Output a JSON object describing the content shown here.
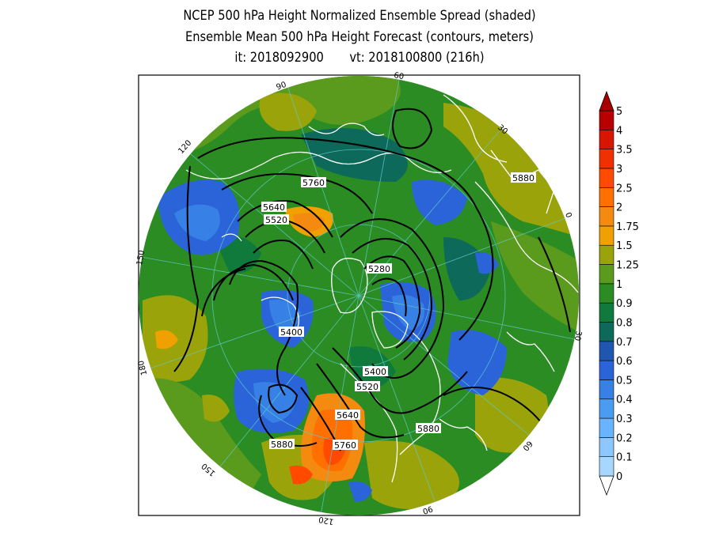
{
  "title": {
    "line1": "NCEP 500 hPa Height Normalized Ensemble Spread (shaded)",
    "line2": "Ensemble Mean 500 hPa Height Forecast (contours, meters)",
    "line3": "it: 2018092900       vt: 2018100800 (216h)"
  },
  "colorbar": {
    "levels": [
      "0",
      "0.1",
      "0.2",
      "0.3",
      "0.4",
      "0.5",
      "0.6",
      "0.7",
      "0.8",
      "0.9",
      "1",
      "1.25",
      "1.5",
      "1.75",
      "2",
      "2.5",
      "3",
      "3.5",
      "4",
      "5"
    ],
    "colors": [
      "#ffffff",
      "#a6d8ff",
      "#8cc8ff",
      "#6ab4ff",
      "#4a9cf2",
      "#3680e6",
      "#2a64d8",
      "#1e56b0",
      "#0d6a5a",
      "#0f7a3c",
      "#2c8c24",
      "#5a9a1c",
      "#9aa40a",
      "#f0a000",
      "#f58a10",
      "#ff7000",
      "#ff4a00",
      "#f03000",
      "#d81600",
      "#b80000",
      "#a80000"
    ]
  },
  "contour_labels": [
    "5760",
    "5640",
    "5520",
    "5280",
    "5400",
    "5400",
    "5520",
    "5640",
    "5760",
    "5880",
    "5880",
    "5880"
  ],
  "meridian_labels": [
    "60",
    "30",
    "0",
    "30",
    "60",
    "90",
    "120",
    "150",
    "180",
    "150",
    "120",
    "90"
  ],
  "colors": {
    "background": "#ffffff",
    "frame": "#000000",
    "coastline": "#ffffff",
    "contour": "#000000",
    "grid": "#5fc8c8"
  }
}
